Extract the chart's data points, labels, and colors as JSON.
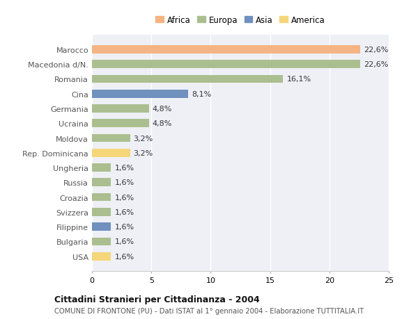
{
  "categories": [
    "Marocco",
    "Macedonia d/N.",
    "Romania",
    "Cina",
    "Germania",
    "Ucraina",
    "Moldova",
    "Rep. Dominicana",
    "Ungheria",
    "Russia",
    "Croazia",
    "Svizzera",
    "Filippine",
    "Bulgaria",
    "USA"
  ],
  "values": [
    22.6,
    22.6,
    16.1,
    8.1,
    4.8,
    4.8,
    3.2,
    3.2,
    1.6,
    1.6,
    1.6,
    1.6,
    1.6,
    1.6,
    1.6
  ],
  "labels": [
    "22,6%",
    "22,6%",
    "16,1%",
    "8,1%",
    "4,8%",
    "4,8%",
    "3,2%",
    "3,2%",
    "1,6%",
    "1,6%",
    "1,6%",
    "1,6%",
    "1,6%",
    "1,6%",
    "1,6%"
  ],
  "continents": [
    "Africa",
    "Europa",
    "Europa",
    "Asia",
    "Europa",
    "Europa",
    "Europa",
    "America",
    "Europa",
    "Europa",
    "Europa",
    "Europa",
    "Asia",
    "Europa",
    "America"
  ],
  "colors": {
    "Africa": "#F5B483",
    "Europa": "#ABBE8F",
    "Asia": "#7090BE",
    "America": "#F5D67A"
  },
  "legend_order": [
    "Africa",
    "Europa",
    "Asia",
    "America"
  ],
  "legend_colors": {
    "Africa": "#F5B483",
    "Europa": "#ABBE8F",
    "Asia": "#7090BE",
    "America": "#F5D67A"
  },
  "xlim": [
    0,
    25
  ],
  "xticks": [
    0,
    5,
    10,
    15,
    20,
    25
  ],
  "title": "Cittadini Stranieri per Cittadinanza - 2004",
  "subtitle": "COMUNE DI FRONTONE (PU) - Dati ISTAT al 1° gennaio 2004 - Elaborazione TUTTITALIA.IT",
  "background_color": "#ffffff",
  "plot_bg_color": "#eef0f5",
  "grid_color": "#ffffff",
  "bar_height": 0.55,
  "label_fontsize": 8,
  "ytick_fontsize": 8,
  "xtick_fontsize": 8
}
